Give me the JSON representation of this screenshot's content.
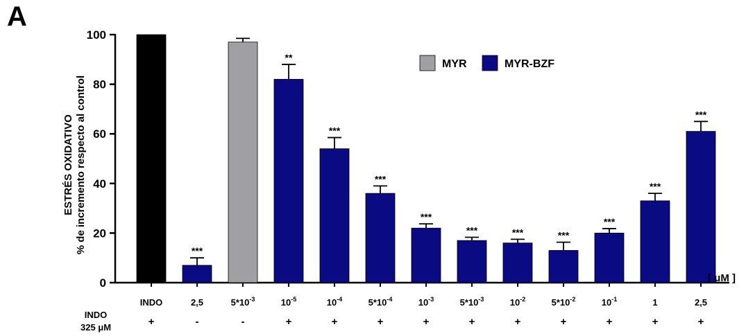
{
  "panel_label": "A",
  "chart_data": {
    "type": "bar",
    "title": "",
    "ylabel_line1": "ESTRÉS OXIDATIVO",
    "ylabel_line2": "% de incremento respecto al control",
    "xlabel": "[ μM ]",
    "ylim": [
      0,
      100
    ],
    "yticks": [
      0,
      20,
      40,
      60,
      80,
      100
    ],
    "legend_position": "top-right",
    "legend": [
      {
        "label": "MYR",
        "color": "#a0a0a4"
      },
      {
        "label": "MYR-BZF",
        "color": "#0a0a82"
      }
    ],
    "colors": {
      "INDO": "#000000",
      "MYR": "#a0a0a4",
      "MYR-BZF": "#0a0a82"
    },
    "bars": [
      {
        "category": "INDO",
        "base": "INDO",
        "exp": "",
        "group": "INDO",
        "value": 100,
        "error": 0,
        "sig": "",
        "indo": "+"
      },
      {
        "category": "2,5",
        "base": "2,5",
        "exp": "",
        "group": "MYR-BZF",
        "value": 7,
        "error": 3,
        "sig": "***",
        "indo": "-"
      },
      {
        "category": "5*10-3",
        "base": "5*10",
        "exp": "-3",
        "group": "MYR",
        "value": 97,
        "error": 1.5,
        "sig": "",
        "indo": "-"
      },
      {
        "category": "10-5",
        "base": "10",
        "exp": "-5",
        "group": "MYR-BZF",
        "value": 82,
        "error": 6,
        "sig": "**",
        "indo": "+"
      },
      {
        "category": "10-4",
        "base": "10",
        "exp": "-4",
        "group": "MYR-BZF",
        "value": 54,
        "error": 4.5,
        "sig": "***",
        "indo": "+"
      },
      {
        "category": "5*10-4",
        "base": "5*10",
        "exp": "-4",
        "group": "MYR-BZF",
        "value": 36,
        "error": 3,
        "sig": "***",
        "indo": "+"
      },
      {
        "category": "10-3",
        "base": "10",
        "exp": "-3",
        "group": "MYR-BZF",
        "value": 22,
        "error": 1.7,
        "sig": "***",
        "indo": "+"
      },
      {
        "category": "5*10-3",
        "base": "5*10",
        "exp": "-3",
        "group": "MYR-BZF",
        "value": 17,
        "error": 1.3,
        "sig": "***",
        "indo": "+"
      },
      {
        "category": "10-2",
        "base": "10",
        "exp": "-2",
        "group": "MYR-BZF",
        "value": 16,
        "error": 1.5,
        "sig": "***",
        "indo": "+"
      },
      {
        "category": "5*10-2",
        "base": "5*10",
        "exp": "-2",
        "group": "MYR-BZF",
        "value": 13,
        "error": 3.3,
        "sig": "***",
        "indo": "+"
      },
      {
        "category": "10-1",
        "base": "10",
        "exp": "-1",
        "group": "MYR-BZF",
        "value": 20,
        "error": 1.8,
        "sig": "***",
        "indo": "+"
      },
      {
        "category": "1",
        "base": "1",
        "exp": "",
        "group": "MYR-BZF",
        "value": 33,
        "error": 3,
        "sig": "***",
        "indo": "+"
      },
      {
        "category": "2,5",
        "base": "2,5",
        "exp": "",
        "group": "MYR-BZF",
        "value": 61,
        "error": 4,
        "sig": "***",
        "indo": "+"
      }
    ],
    "row_label_line1": "INDO",
    "row_label_line2": "325 μM"
  }
}
